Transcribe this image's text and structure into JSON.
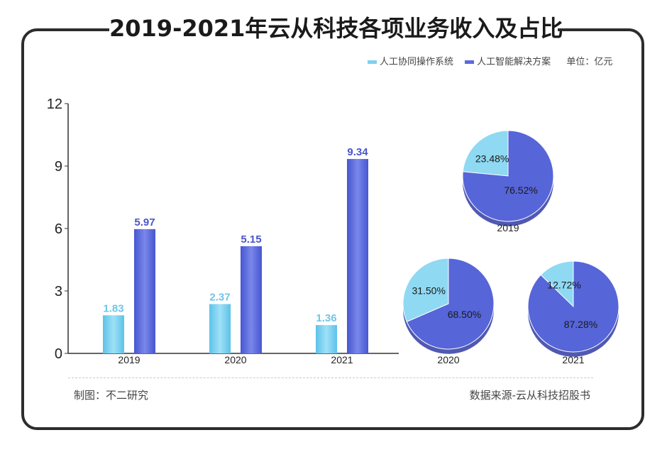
{
  "title": "2019-2021年云从科技各项业务收入及占比",
  "legend": {
    "series1": "人工协同操作系统",
    "series2": "人工智能解决方案",
    "unit": "单位：亿元"
  },
  "footer": {
    "left": "制图：不二研究",
    "right": "数据来源-云从科技招股书"
  },
  "colors": {
    "series1": "#7fd0ee",
    "series2": "#5b6bdb",
    "pie_light": "#8fd9f2",
    "pie_dark": "#5665d8",
    "label_blue1": "#6fc6e8",
    "label_blue2": "#4a55c8"
  },
  "chart_data": [
    {
      "type": "bar",
      "categories": [
        "2019",
        "2020",
        "2021"
      ],
      "series": [
        {
          "name": "人工协同操作系统",
          "values": [
            1.83,
            2.37,
            1.36
          ],
          "labels": [
            "1.83",
            "2.37",
            "1.36"
          ]
        },
        {
          "name": "人工智能解决方案",
          "values": [
            5.97,
            5.15,
            9.34
          ],
          "labels": [
            "5.97",
            "5.15",
            "9.34"
          ]
        }
      ],
      "yticks": [
        "0",
        "3",
        "6",
        "9",
        "12"
      ],
      "ylim": [
        0,
        12
      ]
    },
    {
      "type": "pie",
      "title": "2019",
      "slices": [
        {
          "name": "人工协同操作系统",
          "value": 23.48,
          "label": "23.48%"
        },
        {
          "name": "人工智能解决方案",
          "value": 76.52,
          "label": "76.52%"
        }
      ]
    },
    {
      "type": "pie",
      "title": "2020",
      "slices": [
        {
          "name": "人工协同操作系统",
          "value": 31.5,
          "label": "31.50%"
        },
        {
          "name": "人工智能解决方案",
          "value": 68.5,
          "label": "68.50%"
        }
      ]
    },
    {
      "type": "pie",
      "title": "2021",
      "slices": [
        {
          "name": "人工协同操作系统",
          "value": 12.72,
          "label": "12.72%"
        },
        {
          "name": "人工智能解决方案",
          "value": 87.28,
          "label": "87.28%"
        }
      ]
    }
  ]
}
